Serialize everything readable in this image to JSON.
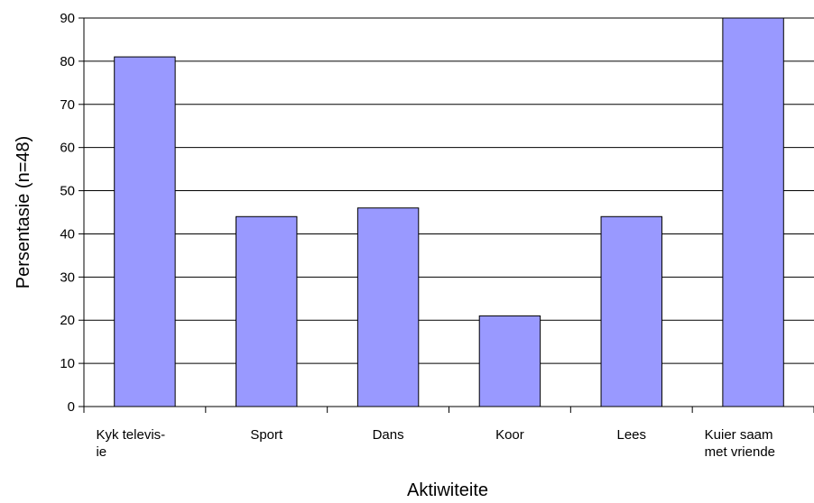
{
  "chart_data": {
    "type": "bar",
    "categories": [
      [
        "Kyk televis-",
        "ie"
      ],
      [
        "Sport"
      ],
      [
        "Dans"
      ],
      [
        "Koor"
      ],
      [
        "Lees"
      ],
      [
        "Kuier saam",
        "met vriende"
      ]
    ],
    "values": [
      81,
      44,
      46,
      21,
      44,
      90
    ],
    "title": "",
    "xlabel": "Aktiwiteite",
    "ylabel": "Persentasie (n=48)",
    "ylim": [
      0,
      90
    ],
    "yticks": [
      0,
      10,
      20,
      30,
      40,
      50,
      60,
      70,
      80,
      90
    ],
    "grid": true,
    "legend": "none",
    "bar_color": "#9999ff",
    "bar_edge_color": "#000000"
  }
}
